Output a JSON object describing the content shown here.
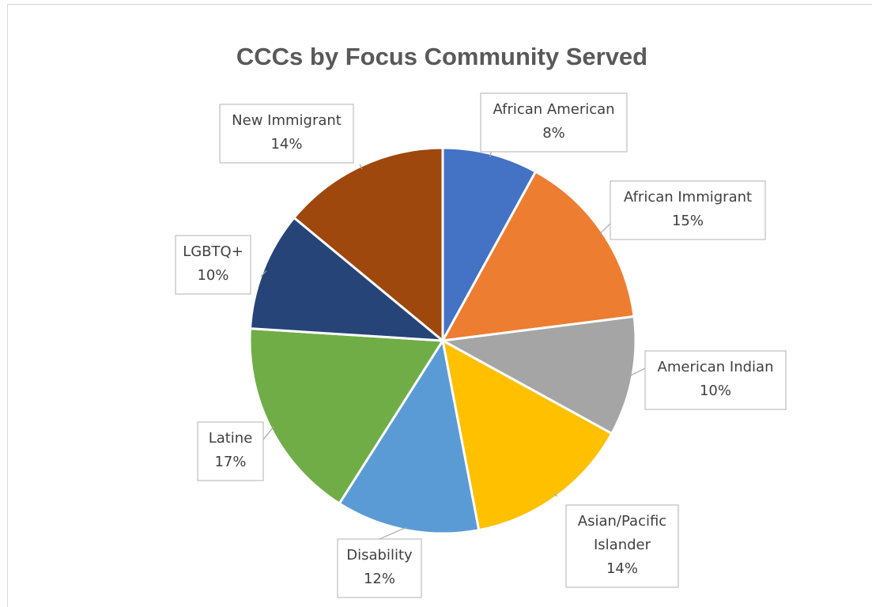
{
  "chart_data": {
    "type": "pie",
    "title": "CCCs by Focus Community Served",
    "series": [
      {
        "slices": [
          {
            "label": "African American",
            "value": 8,
            "value_label": "8%",
            "color": "#4472C4"
          },
          {
            "label": "African Immigrant",
            "value": 15,
            "value_label": "15%",
            "color": "#ED7D31"
          },
          {
            "label": "American Indian",
            "value": 10,
            "value_label": "10%",
            "color": "#A5A5A5"
          },
          {
            "label": "Asian/Pacific Islander",
            "value": 14,
            "value_label": "14%",
            "color": "#FFC000"
          },
          {
            "label": "Disability",
            "value": 12,
            "value_label": "12%",
            "color": "#5B9BD5"
          },
          {
            "label": "Latine",
            "value": 17,
            "value_label": "17%",
            "color": "#70AD47"
          },
          {
            "label": "LGBTQ+",
            "value": 10,
            "value_label": "10%",
            "color": "#264478"
          },
          {
            "label": "New Immigrant",
            "value": 14,
            "value_label": "14%",
            "color": "#9E480E"
          }
        ]
      }
    ],
    "legend": "none",
    "data_labels": "category and percentage, in callout boxes"
  }
}
